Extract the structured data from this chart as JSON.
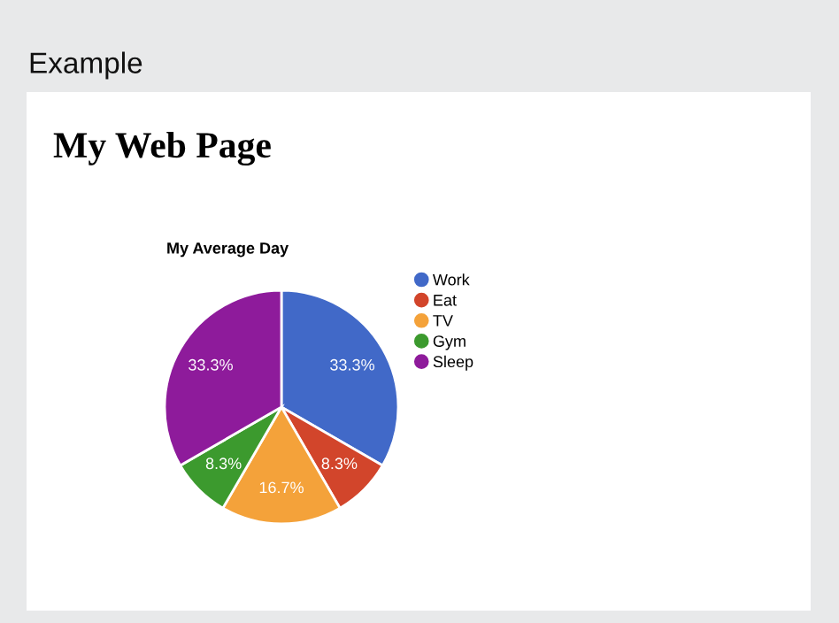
{
  "chart_data": {
    "type": "pie",
    "title": "My Average Day",
    "annotations": [
      "Example",
      "My Web Page"
    ],
    "categories": [
      "Work",
      "Eat",
      "TV",
      "Gym",
      "Sleep"
    ],
    "values": [
      33.3,
      8.3,
      16.7,
      8.3,
      33.3
    ],
    "value_labels": [
      "33.3%",
      "8.3%",
      "16.7%",
      "8.3%",
      "33.3%"
    ],
    "colors": [
      "#4169c8",
      "#d2452b",
      "#f4a23a",
      "#3c9a2e",
      "#8e1b9b"
    ],
    "legend": "right"
  }
}
